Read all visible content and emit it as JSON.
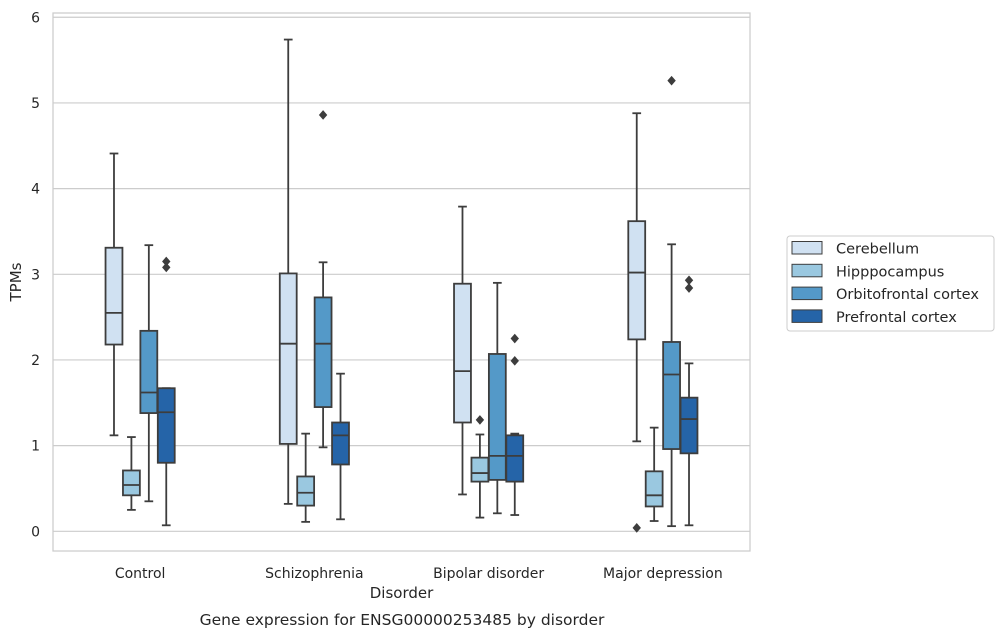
{
  "chart_data": {
    "type": "box",
    "xlabel": "Disorder",
    "ylabel": "TPMs",
    "caption": "Gene expression for ENSG00000253485 by disorder",
    "ylim": [
      -0.23,
      6.05
    ],
    "yticks": [
      "0",
      "1",
      "2",
      "3",
      "4",
      "5",
      "6"
    ],
    "grid": true,
    "legend_position": "right",
    "categories": [
      "Control",
      "Schizophrenia",
      "Bipolar disorder",
      "Major depression"
    ],
    "series": [
      {
        "name": "Cerebellum",
        "color": "#d0e1f2",
        "boxes": [
          {
            "whislo": 1.12,
            "q1": 2.18,
            "med": 2.55,
            "q3": 3.31,
            "whishi": 4.41,
            "fliers": []
          },
          {
            "whislo": 0.32,
            "q1": 1.02,
            "med": 2.19,
            "q3": 3.01,
            "whishi": 5.74,
            "fliers": []
          },
          {
            "whislo": 0.43,
            "q1": 1.27,
            "med": 1.87,
            "q3": 2.89,
            "whishi": 3.79,
            "fliers": []
          },
          {
            "whislo": 1.05,
            "q1": 2.24,
            "med": 3.02,
            "q3": 3.62,
            "whishi": 4.88,
            "fliers": [
              0.04
            ]
          }
        ]
      },
      {
        "name": "Hipppocampus",
        "color": "#9ac8e0",
        "boxes": [
          {
            "whislo": 0.25,
            "q1": 0.42,
            "med": 0.54,
            "q3": 0.71,
            "whishi": 1.1,
            "fliers": []
          },
          {
            "whislo": 0.11,
            "q1": 0.3,
            "med": 0.45,
            "q3": 0.64,
            "whishi": 1.14,
            "fliers": []
          },
          {
            "whislo": 0.16,
            "q1": 0.58,
            "med": 0.68,
            "q3": 0.86,
            "whishi": 1.13,
            "fliers": [
              1.3
            ]
          },
          {
            "whislo": 0.12,
            "q1": 0.29,
            "med": 0.42,
            "q3": 0.7,
            "whishi": 1.21,
            "fliers": []
          }
        ]
      },
      {
        "name": "Orbitofrontal cortex",
        "color": "#5499c8",
        "boxes": [
          {
            "whislo": 0.35,
            "q1": 1.38,
            "med": 1.62,
            "q3": 2.34,
            "whishi": 3.34,
            "fliers": []
          },
          {
            "whislo": 0.98,
            "q1": 1.45,
            "med": 2.19,
            "q3": 2.73,
            "whishi": 3.14,
            "fliers": [
              4.86
            ]
          },
          {
            "whislo": 0.21,
            "q1": 0.6,
            "med": 0.88,
            "q3": 2.07,
            "whishi": 2.9,
            "fliers": []
          },
          {
            "whislo": 0.06,
            "q1": 0.96,
            "med": 1.83,
            "q3": 2.21,
            "whishi": 3.35,
            "fliers": [
              5.26
            ]
          }
        ]
      },
      {
        "name": "Prefrontal cortex",
        "color": "#2564a8",
        "boxes": [
          {
            "whislo": 0.07,
            "q1": 0.8,
            "med": 1.39,
            "q3": 1.67,
            "whishi": 1.67,
            "fliers": [
              3.08,
              3.15
            ]
          },
          {
            "whislo": 0.14,
            "q1": 0.78,
            "med": 1.12,
            "q3": 1.27,
            "whishi": 1.84,
            "fliers": []
          },
          {
            "whislo": 0.19,
            "q1": 0.58,
            "med": 0.88,
            "q3": 1.12,
            "whishi": 1.14,
            "fliers": [
              1.99,
              2.25
            ]
          },
          {
            "whislo": 0.07,
            "q1": 0.91,
            "med": 1.31,
            "q3": 1.56,
            "whishi": 1.96,
            "fliers": [
              2.84,
              2.93
            ]
          }
        ]
      }
    ]
  }
}
